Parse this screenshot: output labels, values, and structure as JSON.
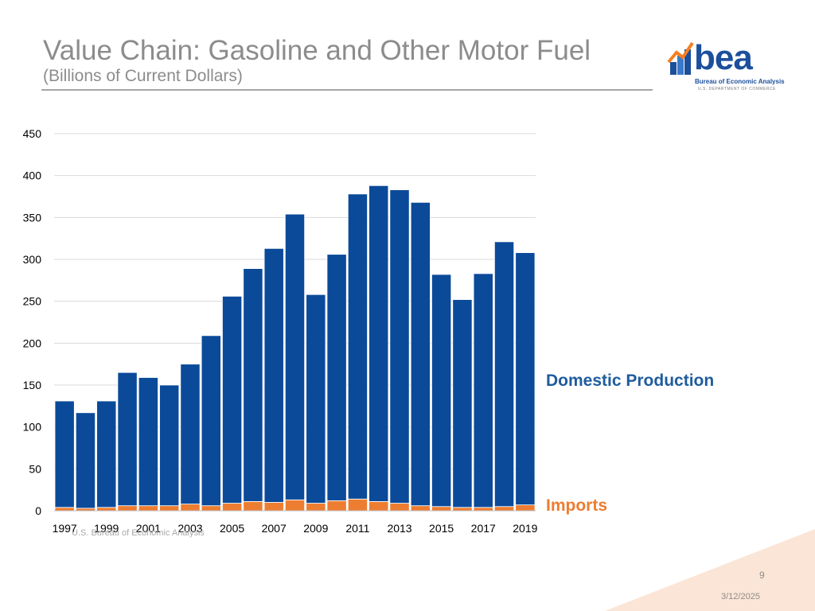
{
  "slide": {
    "title": "Value Chain: Gasoline and Other Motor Fuel",
    "subtitle": "(Billions of Current Dollars)",
    "source": "U.S. Bureau of Economic Analysis",
    "page_number": "9",
    "date": "3/12/2025"
  },
  "logo": {
    "wordmark": "bea",
    "name": "Bureau of Economic Analysis",
    "dept": "U.S. DEPARTMENT OF COMMERCE"
  },
  "colors": {
    "domestic": "#0b4a99",
    "imports": "#ed7d31",
    "grid": "#d9d9d9",
    "axis_text": "#000000"
  },
  "chart_data": {
    "type": "bar",
    "stacked": true,
    "title": "Value Chain: Gasoline and Other Motor Fuel",
    "ylabel": "Billions of Current Dollars",
    "ylim": [
      0,
      450
    ],
    "yticks": [
      0,
      50,
      100,
      150,
      200,
      250,
      300,
      350,
      400,
      450
    ],
    "categories": [
      "1997",
      "1998",
      "1999",
      "2000",
      "2001",
      "2002",
      "2003",
      "2004",
      "2005",
      "2006",
      "2007",
      "2008",
      "2009",
      "2010",
      "2011",
      "2012",
      "2013",
      "2014",
      "2015",
      "2016",
      "2017",
      "2018",
      "2019"
    ],
    "tick_labels": [
      "1997",
      "1999",
      "2001",
      "2003",
      "2005",
      "2007",
      "2009",
      "2011",
      "2013",
      "2015",
      "2017",
      "2019"
    ],
    "series": [
      {
        "name": "Imports",
        "color": "#ed7d31",
        "values": [
          4,
          3,
          4,
          6,
          6,
          6,
          8,
          6,
          9,
          11,
          10,
          13,
          9,
          12,
          14,
          11,
          9,
          6,
          5,
          4,
          4,
          5,
          7
        ]
      },
      {
        "name": "Domestic Production",
        "color": "#0b4a99",
        "values": [
          127,
          114,
          127,
          159,
          153,
          144,
          167,
          203,
          247,
          278,
          303,
          341,
          249,
          294,
          364,
          377,
          374,
          362,
          277,
          248,
          279,
          316,
          301
        ]
      }
    ],
    "grid": true,
    "legend": [
      "Domestic Production",
      "Imports"
    ]
  }
}
